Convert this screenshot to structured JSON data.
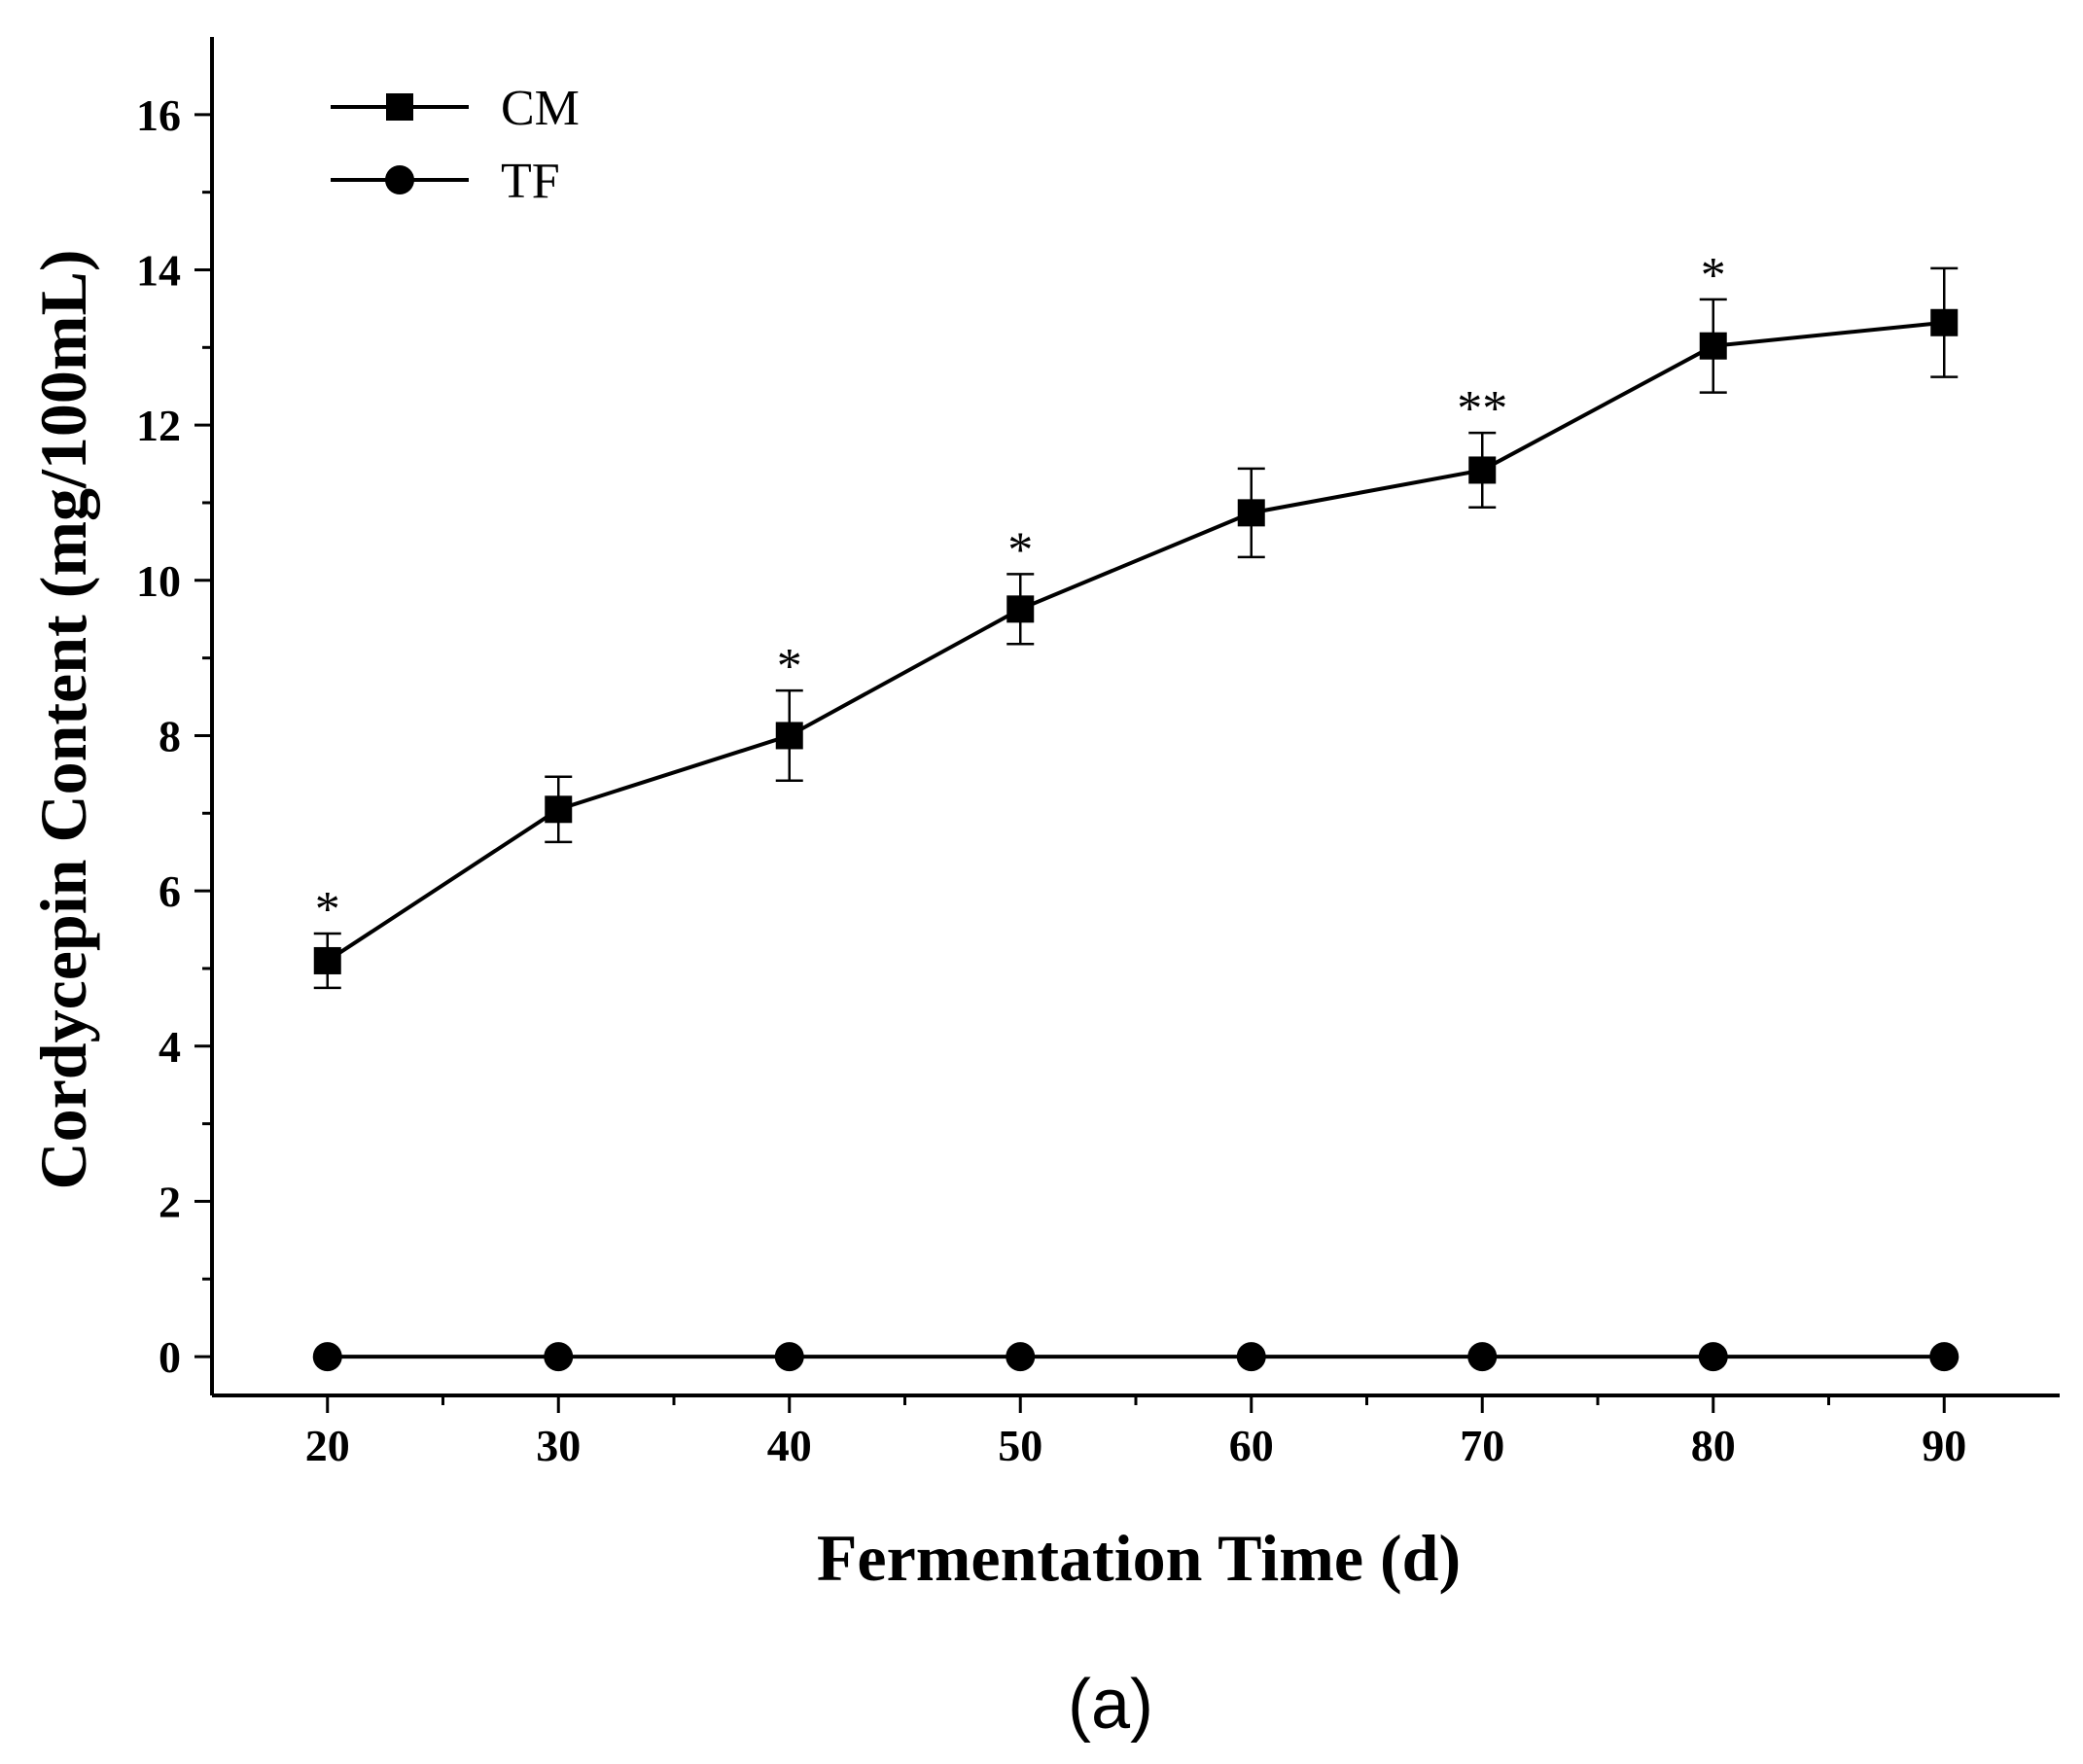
{
  "chart_data": {
    "type": "line",
    "x": [
      20,
      30,
      40,
      50,
      60,
      70,
      80,
      90
    ],
    "series": [
      {
        "name": "CM",
        "marker": "square",
        "values": [
          5.1,
          7.05,
          8.0,
          9.63,
          10.87,
          11.42,
          13.02,
          13.32
        ],
        "errors": [
          0.35,
          0.42,
          0.58,
          0.45,
          0.57,
          0.48,
          0.6,
          0.7
        ],
        "significance": [
          "*",
          "",
          "*",
          "*",
          "",
          "**",
          "*",
          ""
        ]
      },
      {
        "name": "TF",
        "marker": "circle",
        "values": [
          0,
          0,
          0,
          0,
          0,
          0,
          0,
          0
        ],
        "errors": [
          0,
          0,
          0,
          0,
          0,
          0,
          0,
          0
        ]
      }
    ],
    "title": "",
    "xlabel": "Fermentation Time (d)",
    "ylabel": "Cordycepin Content (mg/100mL)",
    "xlim": [
      15,
      95
    ],
    "ylim": [
      -0.5,
      17
    ],
    "xticks": [
      20,
      30,
      40,
      50,
      60,
      70,
      80,
      90
    ],
    "yticks": [
      0,
      2,
      4,
      6,
      8,
      10,
      12,
      14,
      16
    ],
    "grid": false,
    "legend_position": "top-left",
    "panel_label": "(a)",
    "color": "#000000"
  }
}
